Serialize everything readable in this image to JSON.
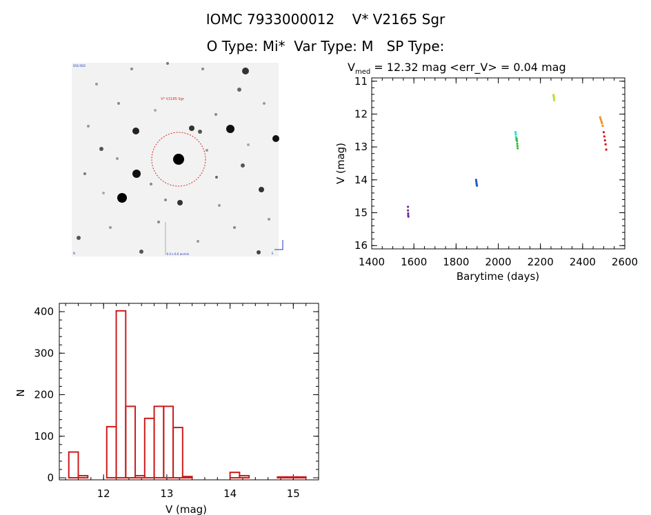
{
  "header": {
    "title_line1": "IOMC 7933000012    V* V2165 Sgr",
    "title_line2": "O Type: Mi*  Var Type: M   SP Type:"
  },
  "image_panel": {
    "target_label": "V* V2165 Sgr",
    "corner_top_left": "DSS RED",
    "corner_bottom_left": "N",
    "corner_bottom_center": "6.0 x 6.0 arcmin",
    "corner_bottom_right": "E",
    "circle_color": "#dd2222"
  },
  "chart_data": [
    {
      "type": "scatter",
      "title_prefix": "V",
      "title_subscript": "med",
      "title_rest": " = 12.32 mag <err_V> = 0.04 mag",
      "xlabel": "Barytime (days)",
      "ylabel": "V (mag)",
      "xlim": [
        1400,
        2600
      ],
      "ylim": [
        16.1,
        10.9
      ],
      "y_inverted": true,
      "x_ticks": [
        1400,
        1600,
        1800,
        2000,
        2200,
        2400,
        2600
      ],
      "y_ticks": [
        11,
        12,
        13,
        14,
        15,
        16
      ],
      "series": [
        {
          "color": "#7030a0",
          "x": [
            1572,
            1572,
            1573,
            1573,
            1574
          ],
          "y": [
            14.82,
            14.93,
            15.02,
            15.08,
            15.12
          ]
        },
        {
          "color": "#1f5fbf",
          "x": [
            1895,
            1896,
            1897,
            1898,
            1899
          ],
          "y": [
            14.0,
            14.05,
            14.1,
            14.14,
            14.18
          ]
        },
        {
          "color": "#20d8d0",
          "x": [
            2082,
            2083,
            2084,
            2085
          ],
          "y": [
            12.55,
            12.62,
            12.7,
            12.78
          ]
        },
        {
          "color": "#30c030",
          "x": [
            2088,
            2089,
            2090,
            2091,
            2092
          ],
          "y": [
            12.75,
            12.82,
            12.9,
            12.97,
            13.04
          ]
        },
        {
          "color": "#b0e030",
          "x": [
            2262,
            2263,
            2264,
            2265
          ],
          "y": [
            11.42,
            11.47,
            11.52,
            11.58
          ]
        },
        {
          "color": "#f09010",
          "x": [
            2483,
            2486,
            2489,
            2492,
            2495
          ],
          "y": [
            12.1,
            12.16,
            12.22,
            12.28,
            12.36
          ]
        },
        {
          "color": "#dd1010",
          "x": [
            2500,
            2503,
            2506,
            2509,
            2512
          ],
          "y": [
            12.55,
            12.68,
            12.8,
            12.92,
            13.08
          ]
        }
      ]
    },
    {
      "type": "histogram",
      "xlabel": "V (mag)",
      "ylabel": "N",
      "xlim": [
        11.3,
        15.4
      ],
      "ylim": [
        -5,
        420
      ],
      "x_ticks": [
        12,
        13,
        14,
        15
      ],
      "y_ticks": [
        0,
        100,
        200,
        300,
        400
      ],
      "color": "#cc1a1a",
      "bin_width": 0.15,
      "bins_start": [
        11.45,
        11.6,
        11.75,
        11.9,
        12.05,
        12.2,
        12.35,
        12.5,
        12.65,
        12.8,
        12.95,
        13.1,
        13.25,
        13.4,
        13.55,
        13.7,
        13.85,
        14.0,
        14.15,
        14.3,
        14.45,
        14.6,
        14.75,
        14.9,
        15.05
      ],
      "counts": [
        62,
        5,
        0,
        0,
        123,
        402,
        172,
        5,
        143,
        172,
        172,
        121,
        3,
        0,
        0,
        0,
        0,
        13,
        5,
        0,
        0,
        0,
        2,
        2,
        2
      ]
    }
  ]
}
